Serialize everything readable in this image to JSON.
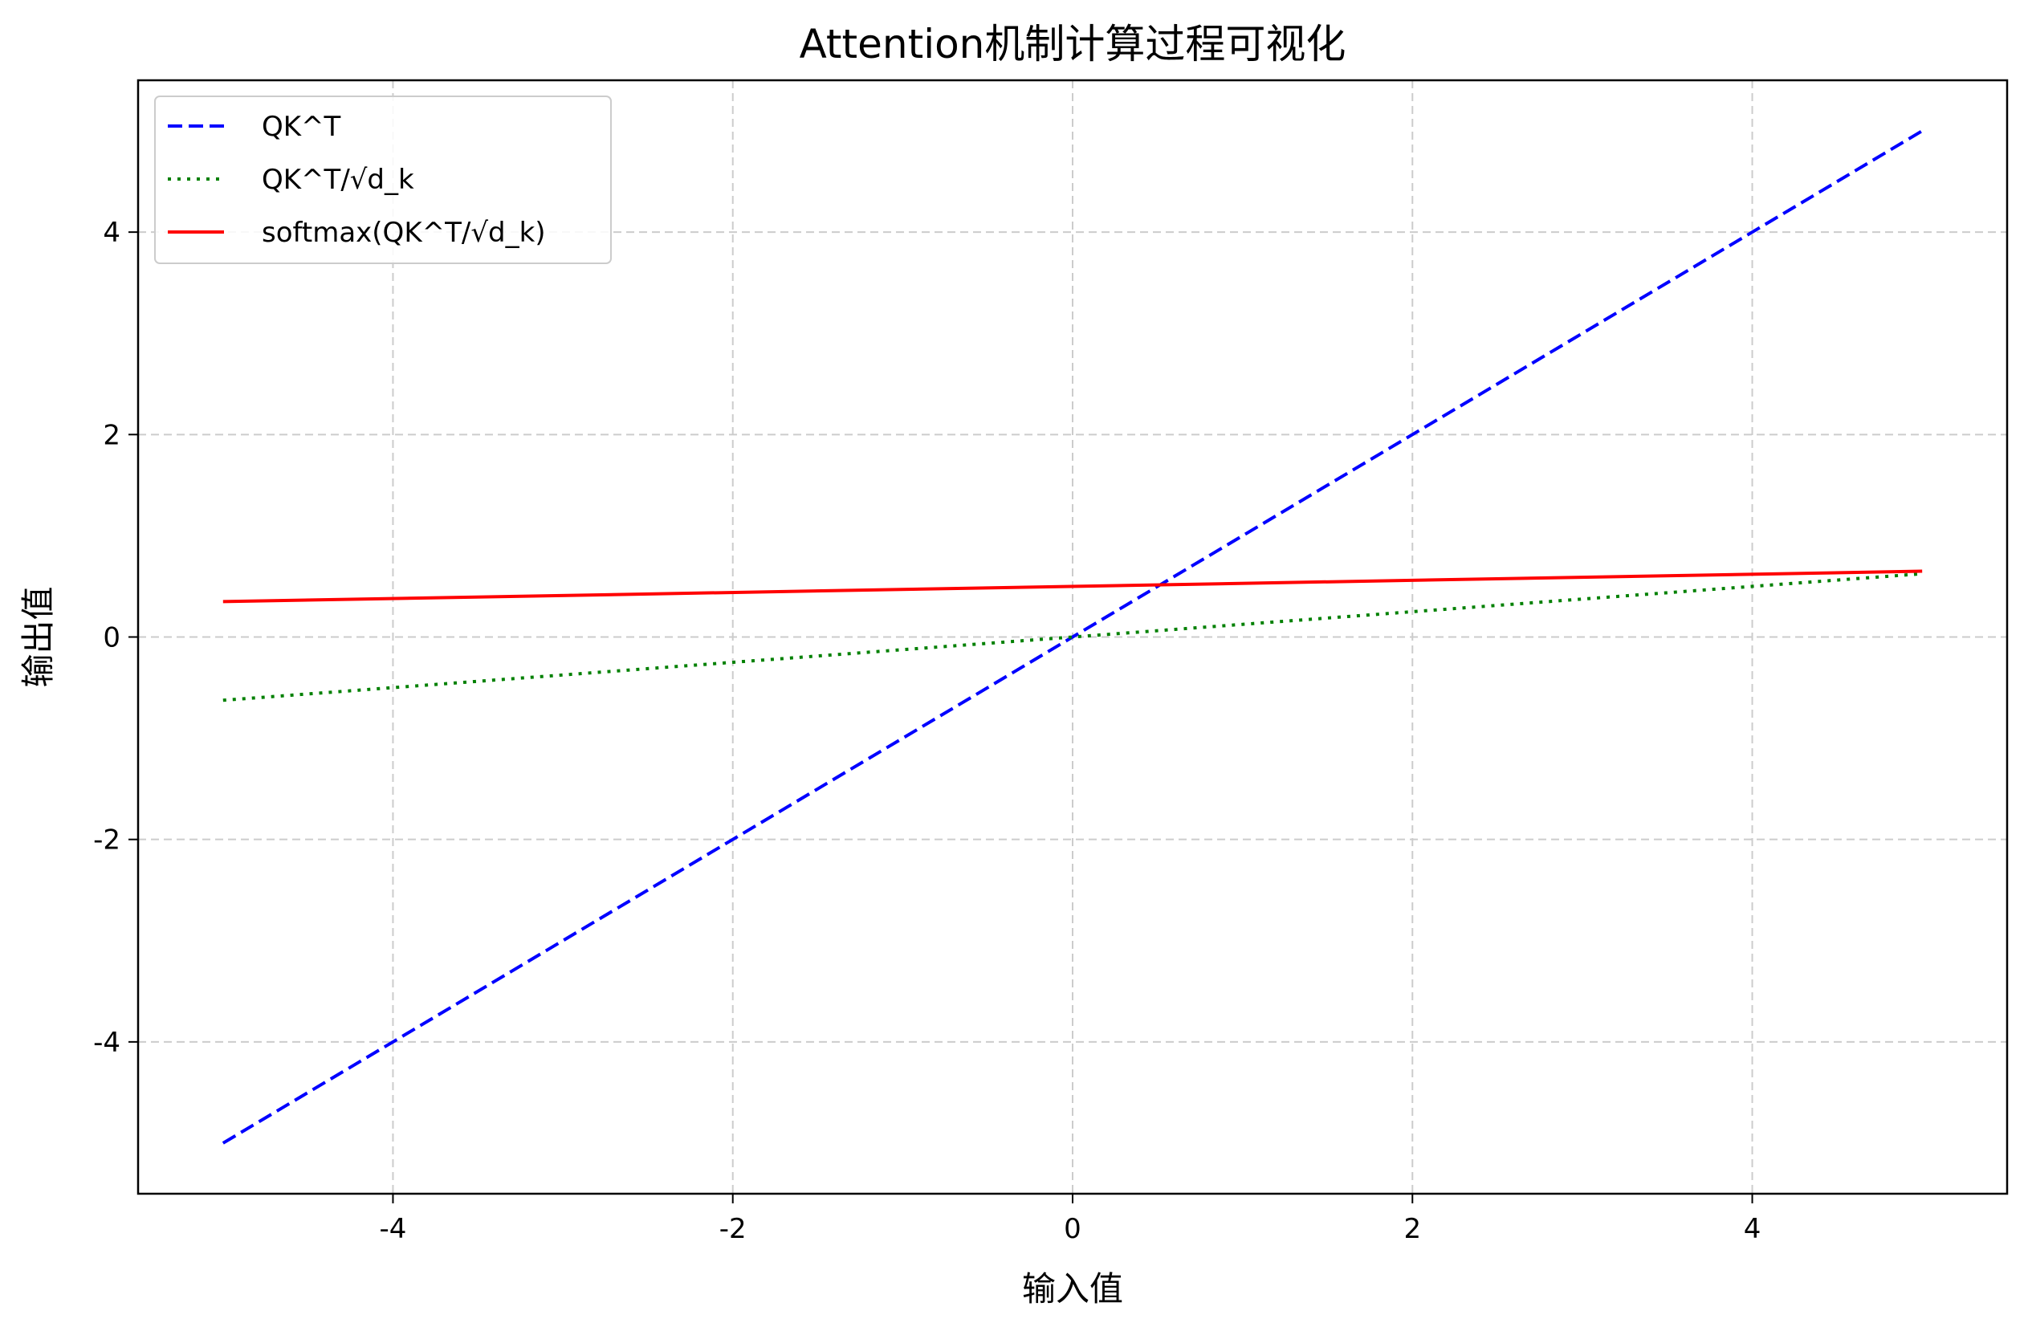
{
  "chart_data": {
    "type": "line",
    "title": "Attention机制计算过程可视化",
    "xlabel": "输入值",
    "ylabel": "输出值",
    "xlim": [
      -5.5,
      5.5
    ],
    "ylim": [
      -5.5,
      5.5
    ],
    "xticks": [
      -4,
      -2,
      0,
      2,
      4
    ],
    "yticks": [
      -4,
      -2,
      0,
      2,
      4
    ],
    "xtick_labels": [
      "-4",
      "-2",
      "0",
      "2",
      "4"
    ],
    "ytick_labels": [
      "-4",
      "-2",
      "0",
      "2",
      "4"
    ],
    "grid": true,
    "legend_position": "upper-left",
    "series": [
      {
        "name": "QK^T",
        "color": "#0000ff",
        "style": "dashed",
        "x": [
          -5,
          5
        ],
        "y": [
          -5,
          5
        ]
      },
      {
        "name": "QK^T/√d_k",
        "color": "#008000",
        "style": "dotted",
        "x": [
          -5,
          5
        ],
        "y": [
          -0.625,
          0.625
        ]
      },
      {
        "name": "softmax(QK^T/√d_k)",
        "color": "#ff0000",
        "style": "solid",
        "x": [
          -5,
          5
        ],
        "y": [
          0.35,
          0.65
        ]
      }
    ]
  }
}
